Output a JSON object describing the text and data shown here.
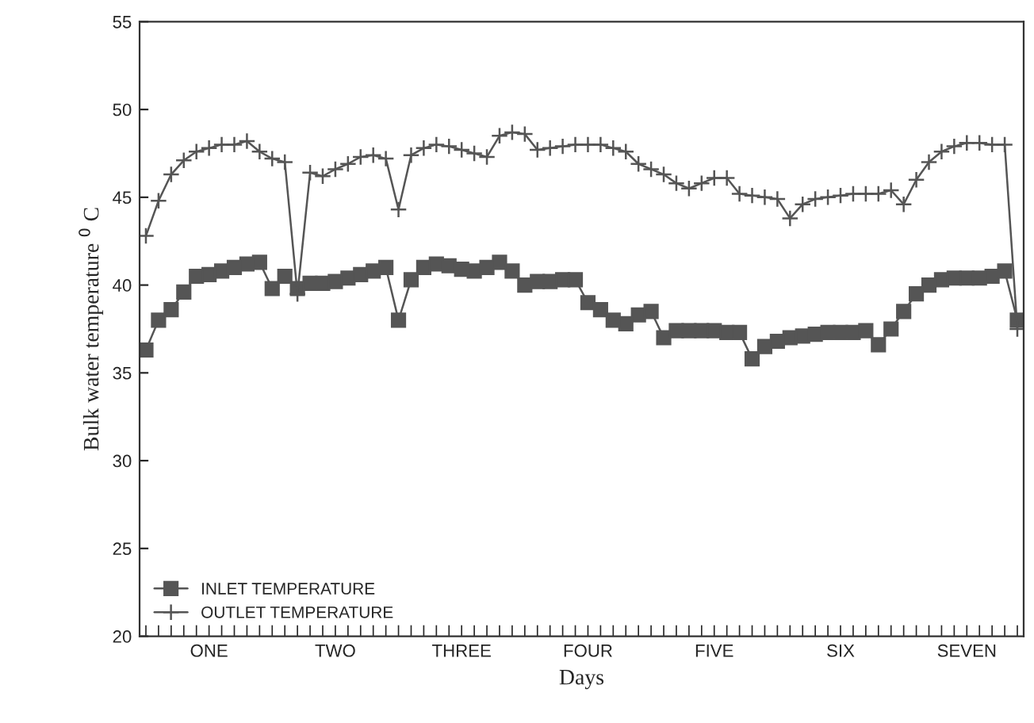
{
  "chart_data": {
    "type": "line",
    "xlabel": "Days",
    "ylabel": "Bulk water temperature $^{0}$ C",
    "ylim": [
      20,
      55
    ],
    "yticks": [
      20,
      25,
      30,
      35,
      40,
      45,
      50,
      55
    ],
    "categories": [
      null,
      null,
      null,
      null,
      null,
      "ONE",
      null,
      null,
      null,
      null,
      null,
      null,
      null,
      null,
      null,
      "TWO",
      null,
      null,
      null,
      null,
      null,
      null,
      null,
      null,
      null,
      "THREE",
      null,
      null,
      null,
      null,
      null,
      null,
      null,
      null,
      null,
      "FOUR",
      null,
      null,
      null,
      null,
      null,
      null,
      null,
      null,
      null,
      "FIVE",
      null,
      null,
      null,
      null,
      null,
      null,
      null,
      null,
      null,
      "SIX",
      null,
      null,
      null,
      null,
      null,
      null,
      null,
      null,
      null,
      "SEVEN",
      null,
      null,
      null,
      null
    ],
    "grid": false,
    "legend": "bottom left",
    "series": [
      {
        "name": "INLET TEMPERATURE",
        "color": "#555555",
        "marker": "square",
        "values": [
          36.3,
          38.0,
          38.6,
          39.6,
          40.5,
          40.6,
          40.8,
          41.0,
          41.2,
          41.3,
          39.8,
          40.5,
          39.8,
          40.1,
          40.1,
          40.2,
          40.4,
          40.6,
          40.8,
          41.0,
          38.0,
          40.3,
          41.0,
          41.2,
          41.1,
          40.9,
          40.8,
          41.0,
          41.3,
          40.8,
          40.0,
          40.2,
          40.2,
          40.3,
          40.3,
          39.0,
          38.6,
          38.0,
          37.8,
          38.3,
          38.5,
          37.0,
          37.4,
          37.4,
          37.4,
          37.4,
          37.3,
          37.3,
          35.8,
          36.5,
          36.8,
          37.0,
          37.1,
          37.2,
          37.3,
          37.3,
          37.3,
          37.4,
          36.6,
          37.5,
          38.5,
          39.5,
          40.0,
          40.3,
          40.4,
          40.4,
          40.4,
          40.5,
          40.8,
          38.0
        ]
      },
      {
        "name": "OUTLET TEMPERATURE",
        "color": "#555555",
        "marker": "cross",
        "values": [
          42.8,
          44.8,
          46.3,
          47.1,
          47.6,
          47.8,
          48.0,
          48.0,
          48.2,
          47.6,
          47.2,
          47.0,
          39.5,
          46.4,
          46.2,
          46.6,
          46.9,
          47.3,
          47.4,
          47.2,
          44.3,
          47.4,
          47.8,
          48.0,
          47.9,
          47.7,
          47.5,
          47.3,
          48.5,
          48.7,
          48.6,
          47.7,
          47.8,
          47.9,
          48.0,
          48.0,
          48.0,
          47.8,
          47.6,
          46.9,
          46.6,
          46.3,
          45.8,
          45.5,
          45.8,
          46.1,
          46.1,
          45.2,
          45.1,
          45.0,
          44.9,
          43.8,
          44.6,
          44.9,
          45.0,
          45.1,
          45.2,
          45.2,
          45.2,
          45.4,
          44.6,
          46.0,
          47.0,
          47.6,
          47.9,
          48.1,
          48.1,
          48.0,
          48.0,
          37.5
        ]
      }
    ]
  }
}
